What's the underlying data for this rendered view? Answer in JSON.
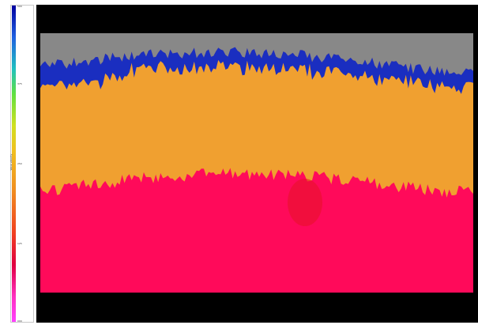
{
  "chart_data": {
    "type": "heatmap",
    "colorbar": {
      "label": "Wave velocity",
      "tick_labels": [
        "500",
        "375",
        "250",
        "125",
        "000"
      ],
      "colors": [
        "#0000a0",
        "#20c0c0",
        "#d0e020",
        "#f09020",
        "#e00040",
        "#ff40ff"
      ]
    },
    "layers": [
      {
        "color": "#888888"
      },
      {
        "color": "#1a2ec0"
      },
      {
        "color": "#f0a030"
      },
      {
        "color": "#ff0a5a"
      }
    ],
    "grid": false,
    "legend": "left colorbar"
  }
}
